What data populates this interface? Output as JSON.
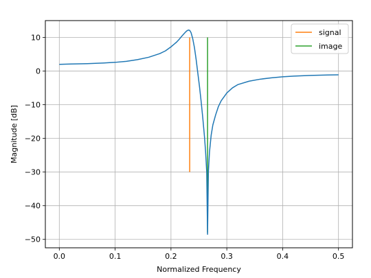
{
  "chart_data": {
    "type": "line",
    "title": "",
    "xlabel": "Normalized Frequency",
    "ylabel": "Magnitude [dB]",
    "xlim": [
      -0.025,
      0.525
    ],
    "ylim": [
      -52.5,
      15.0
    ],
    "xticks": [
      0.0,
      0.1,
      0.2,
      0.3,
      0.4,
      0.5
    ],
    "xtick_labels": [
      "0.0",
      "0.1",
      "0.2",
      "0.3",
      "0.4",
      "0.5"
    ],
    "yticks": [
      -50,
      -40,
      -30,
      -20,
      -10,
      0,
      10
    ],
    "ytick_labels": [
      "−50",
      "−40",
      "−30",
      "−20",
      "−10",
      "0",
      "10"
    ],
    "grid": true,
    "legend": {
      "position": "upper-right",
      "entries": [
        {
          "label": "signal",
          "color": "#ff7f0e"
        },
        {
          "label": "image",
          "color": "#2ca02c"
        }
      ]
    },
    "series": [
      {
        "name": "",
        "color": "#1f77b4",
        "x": [
          0.0,
          0.02,
          0.05,
          0.08,
          0.1,
          0.12,
          0.14,
          0.16,
          0.18,
          0.19,
          0.2,
          0.21,
          0.215,
          0.22,
          0.225,
          0.228,
          0.231,
          0.2335,
          0.236,
          0.239,
          0.242,
          0.245,
          0.248,
          0.251,
          0.254,
          0.257,
          0.26,
          0.262,
          0.264,
          0.2655,
          0.267,
          0.269,
          0.272,
          0.275,
          0.28,
          0.285,
          0.29,
          0.3,
          0.31,
          0.32,
          0.34,
          0.36,
          0.38,
          0.4,
          0.42,
          0.45,
          0.48,
          0.5
        ],
        "y": [
          2.0,
          2.1,
          2.2,
          2.4,
          2.6,
          2.9,
          3.4,
          4.1,
          5.2,
          6.0,
          7.2,
          8.6,
          9.5,
          10.5,
          11.4,
          11.9,
          12.2,
          12.1,
          11.4,
          9.6,
          7.0,
          3.5,
          -0.5,
          -4.5,
          -9.0,
          -14.0,
          -19.5,
          -24.0,
          -30.0,
          -48.5,
          -30.0,
          -24.0,
          -19.0,
          -16.0,
          -13.0,
          -10.5,
          -8.8,
          -6.5,
          -5.0,
          -4.0,
          -3.0,
          -2.4,
          -2.0,
          -1.7,
          -1.5,
          -1.3,
          -1.15,
          -1.1
        ]
      },
      {
        "name": "signal",
        "color": "#ff7f0e",
        "x": [
          0.2335,
          0.2335
        ],
        "y": [
          10,
          -30
        ]
      },
      {
        "name": "image",
        "color": "#2ca02c",
        "x": [
          0.2655,
          0.2655
        ],
        "y": [
          10,
          -48
        ]
      }
    ]
  }
}
